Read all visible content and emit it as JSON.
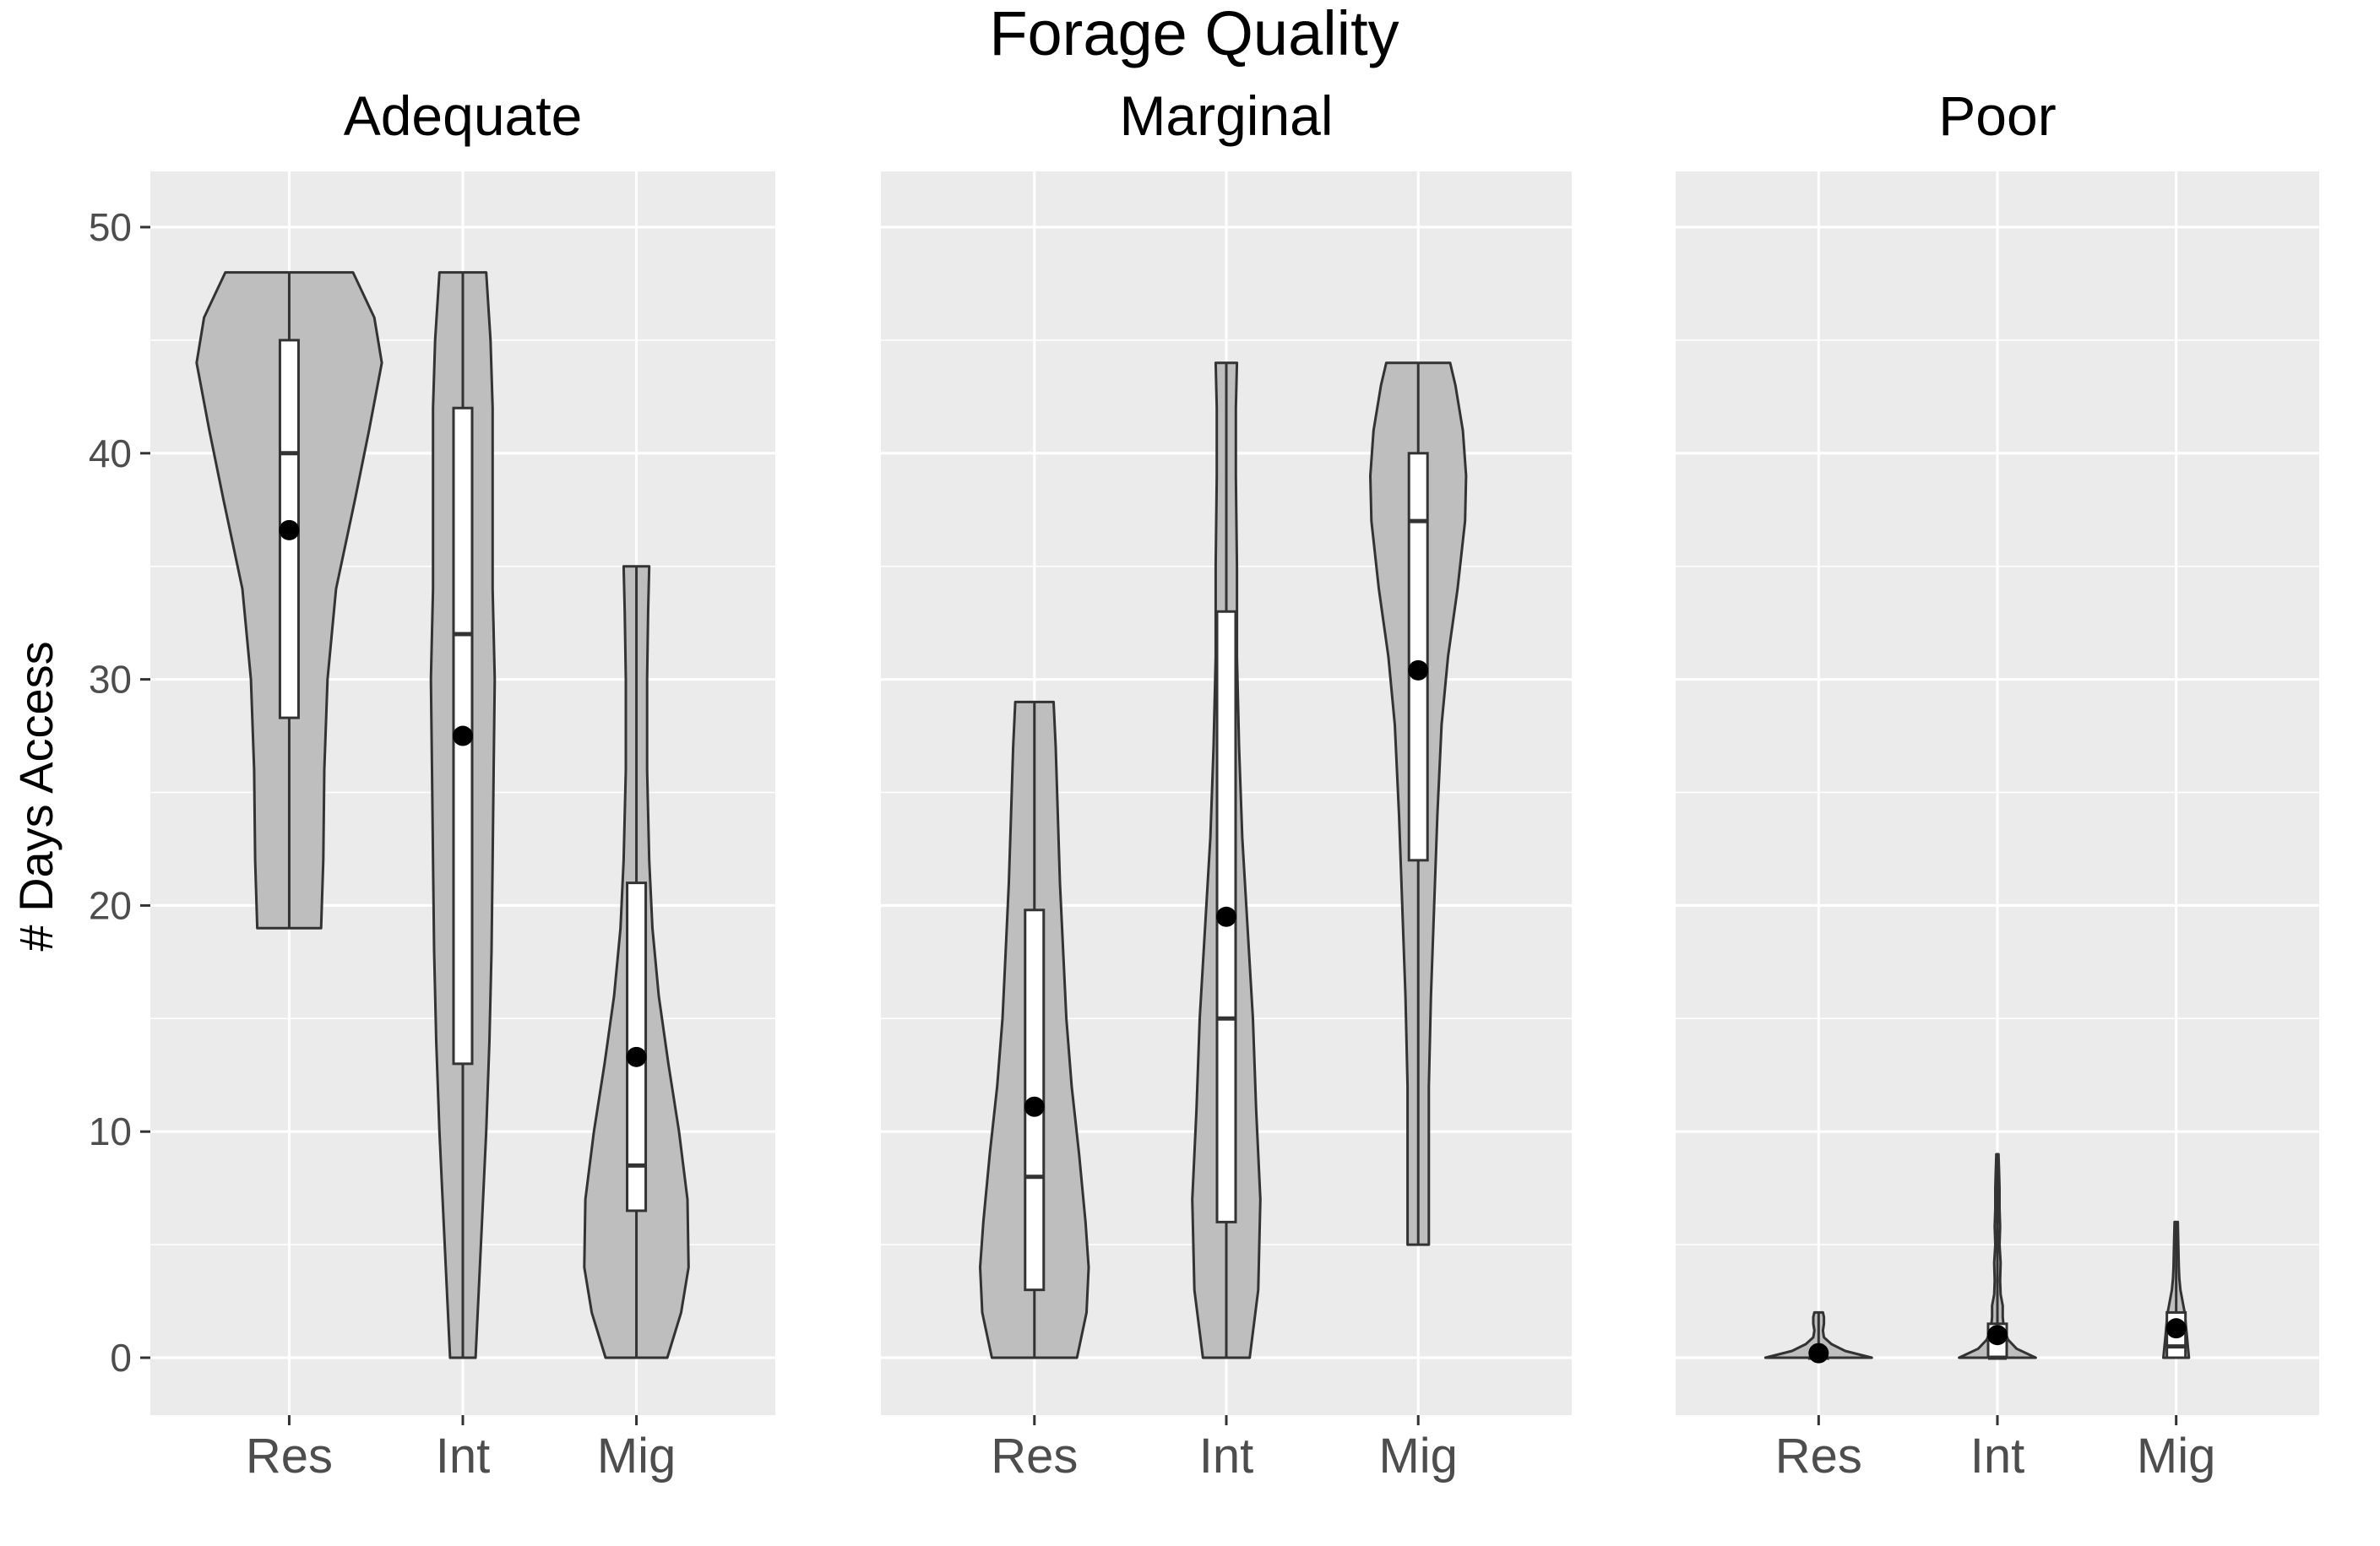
{
  "chart_data": {
    "type": "violin",
    "title": "Forage Quality",
    "xlabel": "",
    "ylabel": "# Days Access",
    "categories": [
      "Res",
      "Int",
      "Mig"
    ],
    "ylim": [
      -2.5,
      52
    ],
    "yticks": [
      0,
      10,
      20,
      30,
      40,
      50
    ],
    "grid": true,
    "panel_background": "#EBEBEB",
    "violin_fill": "#BEBEBE",
    "mean_color": "#000000",
    "facets": [
      {
        "name": "Adequate",
        "groups": [
          {
            "category": "Res",
            "min": 19,
            "max": 48,
            "q1": 28.3,
            "median": 40,
            "q3": 45,
            "mean": 36.6,
            "density": [
              [
                19,
                0.3
              ],
              [
                22,
                0.32
              ],
              [
                26,
                0.33
              ],
              [
                30,
                0.36
              ],
              [
                34,
                0.44
              ],
              [
                38,
                0.62
              ],
              [
                41,
                0.75
              ],
              [
                44,
                0.87
              ],
              [
                46,
                0.8
              ],
              [
                48,
                0.6
              ]
            ]
          },
          {
            "category": "Int",
            "min": 0,
            "max": 48,
            "q1": 13,
            "median": 32,
            "q3": 42,
            "mean": 27.5,
            "density": [
              [
                0,
                0.12
              ],
              [
                3,
                0.15
              ],
              [
                6,
                0.18
              ],
              [
                10,
                0.22
              ],
              [
                14,
                0.25
              ],
              [
                18,
                0.27
              ],
              [
                22,
                0.28
              ],
              [
                26,
                0.29
              ],
              [
                30,
                0.3
              ],
              [
                34,
                0.28
              ],
              [
                38,
                0.28
              ],
              [
                42,
                0.28
              ],
              [
                45,
                0.26
              ],
              [
                48,
                0.22
              ]
            ]
          },
          {
            "category": "Mig",
            "min": 0,
            "max": 35,
            "q1": 6.5,
            "median": 8.5,
            "q3": 21,
            "mean": 13.3,
            "density": [
              [
                0,
                0.29
              ],
              [
                2,
                0.42
              ],
              [
                4,
                0.49
              ],
              [
                7,
                0.48
              ],
              [
                10,
                0.4
              ],
              [
                13,
                0.3
              ],
              [
                16,
                0.21
              ],
              [
                19,
                0.15
              ],
              [
                22,
                0.12
              ],
              [
                26,
                0.1
              ],
              [
                30,
                0.1
              ],
              [
                33,
                0.11
              ],
              [
                35,
                0.12
              ]
            ]
          }
        ]
      },
      {
        "name": "Marginal",
        "groups": [
          {
            "category": "Res",
            "min": 0,
            "max": 29,
            "q1": 3,
            "median": 8,
            "q3": 19.8,
            "mean": 11.1,
            "density": [
              [
                0,
                0.4
              ],
              [
                2,
                0.49
              ],
              [
                4,
                0.51
              ],
              [
                6,
                0.48
              ],
              [
                9,
                0.42
              ],
              [
                12,
                0.35
              ],
              [
                15,
                0.3
              ],
              [
                18,
                0.27
              ],
              [
                21,
                0.24
              ],
              [
                24,
                0.22
              ],
              [
                27,
                0.2
              ],
              [
                29,
                0.18
              ]
            ]
          },
          {
            "category": "Int",
            "min": 0,
            "max": 44,
            "q1": 6,
            "median": 15,
            "q3": 33,
            "mean": 19.5,
            "density": [
              [
                0,
                0.22
              ],
              [
                3,
                0.3
              ],
              [
                7,
                0.32
              ],
              [
                11,
                0.28
              ],
              [
                15,
                0.25
              ],
              [
                19,
                0.2
              ],
              [
                23,
                0.15
              ],
              [
                27,
                0.12
              ],
              [
                31,
                0.1
              ],
              [
                35,
                0.1
              ],
              [
                39,
                0.09
              ],
              [
                42,
                0.09
              ],
              [
                44,
                0.1
              ]
            ]
          },
          {
            "category": "Mig",
            "min": 5,
            "max": 44,
            "q1": 22,
            "median": 37,
            "q3": 40,
            "mean": 30.4,
            "density": [
              [
                5,
                0.1
              ],
              [
                8,
                0.1
              ],
              [
                12,
                0.1
              ],
              [
                16,
                0.12
              ],
              [
                20,
                0.15
              ],
              [
                24,
                0.18
              ],
              [
                28,
                0.22
              ],
              [
                31,
                0.28
              ],
              [
                34,
                0.37
              ],
              [
                37,
                0.44
              ],
              [
                39,
                0.45
              ],
              [
                41,
                0.42
              ],
              [
                43,
                0.35
              ],
              [
                44,
                0.3
              ]
            ]
          }
        ]
      },
      {
        "name": "Poor",
        "groups": [
          {
            "category": "Res",
            "min": 0,
            "max": 2,
            "q1": 0,
            "median": 0,
            "q3": 0,
            "mean": 0.2,
            "density": [
              [
                0,
                0.5
              ],
              [
                0.3,
                0.25
              ],
              [
                0.6,
                0.12
              ],
              [
                0.9,
                0.05
              ],
              [
                1.2,
                0.04
              ],
              [
                1.5,
                0.05
              ],
              [
                1.8,
                0.05
              ],
              [
                2,
                0.04
              ]
            ]
          },
          {
            "category": "Int",
            "min": 0,
            "max": 9,
            "q1": 0,
            "median": 0,
            "q3": 1.5,
            "mean": 1.0,
            "density": [
              [
                0,
                0.36
              ],
              [
                0.4,
                0.18
              ],
              [
                0.8,
                0.1
              ],
              [
                1.3,
                0.06
              ],
              [
                1.8,
                0.05
              ],
              [
                2.3,
                0.05
              ],
              [
                2.8,
                0.03
              ],
              [
                3.4,
                0.025
              ],
              [
                4.2,
                0.03
              ],
              [
                5.0,
                0.02
              ],
              [
                5.8,
                0.025
              ],
              [
                6.6,
                0.02
              ],
              [
                7.5,
                0.02
              ],
              [
                8.3,
                0.015
              ],
              [
                9,
                0.01
              ]
            ]
          },
          {
            "category": "Mig",
            "min": 0,
            "max": 6,
            "q1": 0,
            "median": 0.5,
            "q3": 2,
            "mean": 1.3,
            "density": [
              [
                0,
                0.12
              ],
              [
                0.5,
                0.11
              ],
              [
                1,
                0.1
              ],
              [
                1.5,
                0.09
              ],
              [
                2,
                0.08
              ],
              [
                2.5,
                0.06
              ],
              [
                3,
                0.04
              ],
              [
                3.5,
                0.03
              ],
              [
                4,
                0.025
              ],
              [
                5,
                0.02
              ],
              [
                6,
                0.015
              ]
            ]
          }
        ]
      }
    ]
  }
}
